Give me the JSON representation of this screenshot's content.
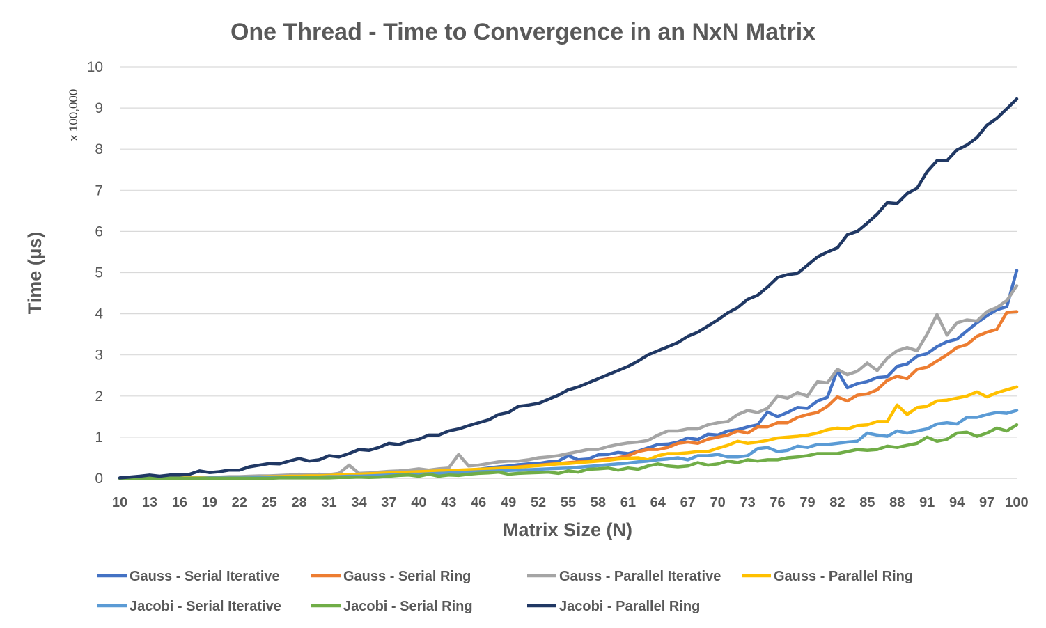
{
  "chart_data": {
    "type": "line",
    "title": "One Thread - Time to Convergence in an NxN Matrix",
    "xlabel": "Matrix Size (N)",
    "ylabel": "Time (µs)",
    "y_unit_label": "x 100,000",
    "ylim": [
      0,
      10
    ],
    "y_ticks": [
      "0",
      "1",
      "2",
      "3",
      "4",
      "5",
      "6",
      "7",
      "8",
      "9",
      "10"
    ],
    "x_ticks": [
      "10",
      "13",
      "16",
      "19",
      "22",
      "25",
      "28",
      "31",
      "34",
      "37",
      "40",
      "43",
      "46",
      "49",
      "52",
      "55",
      "58",
      "61",
      "64",
      "67",
      "70",
      "73",
      "76",
      "79",
      "82",
      "85",
      "88",
      "91",
      "94",
      "97",
      "100"
    ],
    "grid": "horizontal",
    "legend_position": "bottom",
    "x": [
      10,
      11,
      12,
      13,
      14,
      15,
      16,
      17,
      18,
      19,
      20,
      21,
      22,
      23,
      24,
      25,
      26,
      27,
      28,
      29,
      30,
      31,
      32,
      33,
      34,
      35,
      36,
      37,
      38,
      39,
      40,
      41,
      42,
      43,
      44,
      45,
      46,
      47,
      48,
      49,
      50,
      51,
      52,
      53,
      54,
      55,
      56,
      57,
      58,
      59,
      60,
      61,
      62,
      63,
      64,
      65,
      66,
      67,
      68,
      69,
      70,
      71,
      72,
      73,
      74,
      75,
      76,
      77,
      78,
      79,
      80,
      81,
      82,
      83,
      84,
      85,
      86,
      87,
      88,
      89,
      90,
      91,
      92,
      93,
      94,
      95,
      96,
      97,
      98,
      99,
      100
    ],
    "series": [
      {
        "name": "Gauss - Serial Iterative",
        "color": "#4472C4",
        "values": [
          0,
          0,
          0,
          0,
          0,
          0,
          0,
          0,
          0,
          0,
          0.01,
          0.01,
          0.01,
          0.01,
          0.01,
          0.02,
          0.02,
          0.02,
          0.03,
          0.03,
          0.04,
          0.04,
          0.05,
          0.05,
          0.06,
          0.07,
          0.08,
          0.09,
          0.1,
          0.11,
          0.12,
          0.13,
          0.15,
          0.16,
          0.18,
          0.2,
          0.22,
          0.25,
          0.28,
          0.3,
          0.33,
          0.35,
          0.36,
          0.4,
          0.42,
          0.55,
          0.45,
          0.47,
          0.57,
          0.58,
          0.63,
          0.6,
          0.66,
          0.74,
          0.82,
          0.83,
          0.88,
          0.98,
          0.94,
          1.07,
          1.05,
          1.15,
          1.18,
          1.25,
          1.3,
          1.61,
          1.5,
          1.6,
          1.72,
          1.7,
          1.88,
          1.97,
          2.62,
          2.2,
          2.3,
          2.35,
          2.45,
          2.47,
          2.72,
          2.78,
          2.97,
          3.03,
          3.2,
          3.32,
          3.38,
          3.58,
          3.78,
          3.95,
          4.1,
          4.17,
          5.05
        ]
      },
      {
        "name": "Gauss - Serial Ring",
        "color": "#ED7D31",
        "values": [
          0,
          0,
          0,
          0,
          0,
          0,
          0,
          0,
          0,
          0,
          0,
          0,
          0.01,
          0.01,
          0.01,
          0.01,
          0.02,
          0.02,
          0.02,
          0.03,
          0.03,
          0.04,
          0.04,
          0.05,
          0.05,
          0.06,
          0.07,
          0.08,
          0.09,
          0.1,
          0.12,
          0.13,
          0.15,
          0.16,
          0.18,
          0.2,
          0.21,
          0.22,
          0.24,
          0.26,
          0.28,
          0.3,
          0.32,
          0.34,
          0.36,
          0.38,
          0.4,
          0.42,
          0.44,
          0.47,
          0.5,
          0.55,
          0.65,
          0.7,
          0.7,
          0.75,
          0.85,
          0.88,
          0.85,
          0.95,
          1.0,
          1.05,
          1.15,
          1.1,
          1.25,
          1.25,
          1.35,
          1.35,
          1.48,
          1.55,
          1.6,
          1.75,
          1.98,
          1.88,
          2.02,
          2.05,
          2.15,
          2.38,
          2.48,
          2.42,
          2.65,
          2.7,
          2.85,
          3.0,
          3.18,
          3.25,
          3.45,
          3.55,
          3.62,
          4.03,
          4.05
        ]
      },
      {
        "name": "Gauss - Parallel Iterative",
        "color": "#A5A5A5",
        "values": [
          0,
          0,
          0,
          0,
          0,
          0.01,
          0.01,
          0.02,
          0.02,
          0.03,
          0.03,
          0.04,
          0.04,
          0.05,
          0.06,
          0.06,
          0.07,
          0.08,
          0.1,
          0.08,
          0.1,
          0.09,
          0.12,
          0.32,
          0.12,
          0.13,
          0.15,
          0.17,
          0.18,
          0.2,
          0.23,
          0.2,
          0.23,
          0.25,
          0.58,
          0.3,
          0.32,
          0.36,
          0.4,
          0.42,
          0.42,
          0.45,
          0.5,
          0.52,
          0.55,
          0.6,
          0.65,
          0.7,
          0.7,
          0.77,
          0.82,
          0.86,
          0.88,
          0.92,
          1.05,
          1.15,
          1.15,
          1.2,
          1.2,
          1.3,
          1.35,
          1.38,
          1.55,
          1.65,
          1.6,
          1.7,
          2.0,
          1.95,
          2.08,
          2.0,
          2.35,
          2.32,
          2.65,
          2.52,
          2.6,
          2.8,
          2.62,
          2.92,
          3.1,
          3.18,
          3.1,
          3.5,
          3.98,
          3.48,
          3.78,
          3.85,
          3.82,
          4.05,
          4.15,
          4.32,
          4.68
        ]
      },
      {
        "name": "Gauss - Parallel Ring",
        "color": "#FFC000",
        "values": [
          0,
          0,
          0,
          0,
          0,
          0,
          0.01,
          0.01,
          0.01,
          0.01,
          0.02,
          0.02,
          0.02,
          0.03,
          0.03,
          0.04,
          0.04,
          0.05,
          0.05,
          0.06,
          0.06,
          0.07,
          0.08,
          0.09,
          0.1,
          0.11,
          0.12,
          0.13,
          0.14,
          0.15,
          0.16,
          0.17,
          0.18,
          0.19,
          0.2,
          0.21,
          0.22,
          0.23,
          0.24,
          0.25,
          0.27,
          0.29,
          0.31,
          0.33,
          0.35,
          0.36,
          0.38,
          0.4,
          0.42,
          0.44,
          0.47,
          0.49,
          0.5,
          0.45,
          0.55,
          0.6,
          0.6,
          0.62,
          0.65,
          0.65,
          0.73,
          0.8,
          0.9,
          0.85,
          0.88,
          0.92,
          0.98,
          1.0,
          1.02,
          1.05,
          1.1,
          1.18,
          1.22,
          1.2,
          1.28,
          1.3,
          1.38,
          1.38,
          1.78,
          1.55,
          1.72,
          1.75,
          1.88,
          1.9,
          1.95,
          2.0,
          2.1,
          1.98,
          2.08,
          2.15,
          2.22
        ]
      },
      {
        "name": "Jacobi - Serial Iterative",
        "color": "#5B9BD5",
        "values": [
          0,
          0,
          0,
          0,
          0,
          0,
          0,
          0,
          0,
          0.01,
          0.01,
          0.01,
          0.01,
          0.01,
          0.02,
          0.02,
          0.02,
          0.02,
          0.03,
          0.03,
          0.03,
          0.04,
          0.04,
          0.05,
          0.05,
          0.06,
          0.07,
          0.08,
          0.09,
          0.1,
          0.1,
          0.11,
          0.12,
          0.13,
          0.14,
          0.15,
          0.16,
          0.17,
          0.18,
          0.19,
          0.2,
          0.21,
          0.22,
          0.23,
          0.24,
          0.25,
          0.27,
          0.29,
          0.31,
          0.33,
          0.35,
          0.37,
          0.4,
          0.42,
          0.45,
          0.47,
          0.5,
          0.45,
          0.55,
          0.55,
          0.58,
          0.52,
          0.52,
          0.55,
          0.72,
          0.75,
          0.65,
          0.68,
          0.78,
          0.75,
          0.82,
          0.82,
          0.85,
          0.88,
          0.9,
          1.1,
          1.05,
          1.02,
          1.15,
          1.1,
          1.15,
          1.2,
          1.32,
          1.35,
          1.32,
          1.48,
          1.48,
          1.55,
          1.6,
          1.58,
          1.65
        ]
      },
      {
        "name": "Jacobi - Serial Ring",
        "color": "#70AD47",
        "values": [
          0,
          0,
          0,
          0,
          0,
          0,
          0,
          0,
          0,
          0,
          0,
          0,
          0,
          0,
          0,
          0,
          0.01,
          0.01,
          0.01,
          0.01,
          0.01,
          0.01,
          0.02,
          0.02,
          0.03,
          0.02,
          0.03,
          0.05,
          0.07,
          0.08,
          0.05,
          0.1,
          0.05,
          0.08,
          0.07,
          0.1,
          0.12,
          0.13,
          0.15,
          0.1,
          0.12,
          0.13,
          0.14,
          0.15,
          0.12,
          0.18,
          0.15,
          0.22,
          0.23,
          0.25,
          0.2,
          0.25,
          0.22,
          0.3,
          0.35,
          0.3,
          0.28,
          0.3,
          0.38,
          0.32,
          0.35,
          0.42,
          0.38,
          0.45,
          0.42,
          0.45,
          0.45,
          0.5,
          0.52,
          0.55,
          0.6,
          0.6,
          0.6,
          0.65,
          0.7,
          0.68,
          0.7,
          0.78,
          0.75,
          0.8,
          0.85,
          1.0,
          0.9,
          0.95,
          1.1,
          1.12,
          1.02,
          1.1,
          1.22,
          1.15,
          1.3
        ]
      },
      {
        "name": "Jacobi - Parallel Ring",
        "color": "#203864",
        "values": [
          0.01,
          0.03,
          0.05,
          0.08,
          0.05,
          0.08,
          0.08,
          0.1,
          0.18,
          0.14,
          0.16,
          0.2,
          0.2,
          0.28,
          0.32,
          0.36,
          0.35,
          0.42,
          0.48,
          0.42,
          0.45,
          0.55,
          0.52,
          0.6,
          0.7,
          0.68,
          0.75,
          0.85,
          0.82,
          0.9,
          0.95,
          1.05,
          1.05,
          1.15,
          1.2,
          1.28,
          1.35,
          1.42,
          1.55,
          1.6,
          1.75,
          1.78,
          1.82,
          1.92,
          2.02,
          2.15,
          2.22,
          2.32,
          2.42,
          2.52,
          2.62,
          2.72,
          2.85,
          3.0,
          3.1,
          3.2,
          3.3,
          3.45,
          3.55,
          3.7,
          3.85,
          4.02,
          4.15,
          4.35,
          4.45,
          4.65,
          4.88,
          4.95,
          4.98,
          5.18,
          5.38,
          5.5,
          5.6,
          5.92,
          6.0,
          6.2,
          6.42,
          6.7,
          6.68,
          6.92,
          7.05,
          7.45,
          7.72,
          7.72,
          7.98,
          8.1,
          8.28,
          8.58,
          8.75,
          8.98,
          9.22
        ]
      }
    ]
  }
}
